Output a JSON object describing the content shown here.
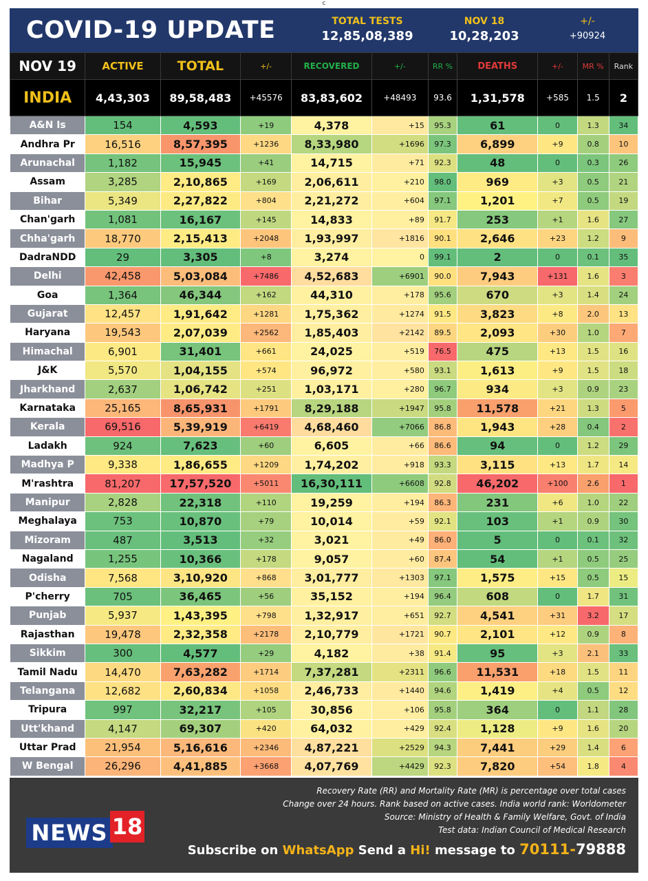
{
  "corner_mark": "c",
  "header": {
    "title": "COVID-19 UPDATE",
    "total_tests_label": "TOTAL TESTS",
    "total_tests_value": "12,85,08,389",
    "nov18_label": "NOV 18",
    "nov18_value": "10,28,203",
    "diff_label": "+/-",
    "diff_value": "+90924"
  },
  "columns": {
    "date": "NOV 19",
    "active": "ACTIVE",
    "total": "TOTAL",
    "total_change": "+/-",
    "recovered": "RECOVERED",
    "recovered_change": "+/-",
    "rr": "RR %",
    "deaths": "DEATHS",
    "deaths_change": "+/-",
    "mr": "MR %",
    "rank": "Rank"
  },
  "india": {
    "name": "INDIA",
    "active": "4,43,303",
    "total": "89,58,483",
    "total_change": "+45576",
    "recovered": "83,83,602",
    "recovered_change": "+48493",
    "rr": "93.6",
    "deaths": "1,31,578",
    "deaths_change": "+585",
    "mr": "1.5",
    "rank": "2"
  },
  "states": [
    {
      "name": "A&N Is",
      "active": "154",
      "total": "4,593",
      "total_change": "+19",
      "recovered": "4,378",
      "recovered_change": "+15",
      "rr": "95.3",
      "deaths": "61",
      "deaths_change": "0",
      "mr": "1.3",
      "rank": "34",
      "c": [
        "#63be7b",
        "#63be7b",
        "#8fcb7d",
        "#fff2a0",
        "#ffe9a0",
        "#a9d27f",
        "#63be7b",
        "#63be7b",
        "#c3d980",
        "#63be7b"
      ]
    },
    {
      "name": "Andhra Pr",
      "active": "16,516",
      "total": "8,57,395",
      "total_change": "+1236",
      "recovered": "8,33,980",
      "recovered_change": "+1696",
      "rr": "97.3",
      "deaths": "6,899",
      "deaths_change": "+9",
      "mr": "0.8",
      "rank": "10",
      "c": [
        "#fdd17f",
        "#f8956b",
        "#fed882",
        "#b6d67f",
        "#d1dd80",
        "#7cc57c",
        "#fdd17f",
        "#fee783",
        "#a4d07e",
        "#fdc57c"
      ]
    },
    {
      "name": "Arunachal",
      "active": "1,182",
      "total": "15,945",
      "total_change": "+41",
      "recovered": "14,715",
      "recovered_change": "+71",
      "rr": "92.3",
      "deaths": "48",
      "deaths_change": "0",
      "mr": "0.3",
      "rank": "26",
      "c": [
        "#75c37c",
        "#6cc17c",
        "#9acd7e",
        "#fff2a0",
        "#ffeba0",
        "#dce081",
        "#63be7b",
        "#63be7b",
        "#7cc57c",
        "#8fcb7d"
      ]
    },
    {
      "name": "Assam",
      "active": "3,285",
      "total": "2,10,865",
      "total_change": "+169",
      "recovered": "2,06,611",
      "recovered_change": "+210",
      "rr": "98.0",
      "deaths": "969",
      "deaths_change": "+3",
      "mr": "0.5",
      "rank": "21",
      "c": [
        "#b0d47f",
        "#ffeb84",
        "#c4d980",
        "#ffeea0",
        "#fff1a0",
        "#63be7b",
        "#ffeb84",
        "#e2e383",
        "#8fcb7d",
        "#b0d47f"
      ]
    },
    {
      "name": "Bihar",
      "active": "5,349",
      "total": "2,27,822",
      "total_change": "+804",
      "recovered": "2,21,272",
      "recovered_change": "+604",
      "rr": "97.1",
      "deaths": "1,201",
      "deaths_change": "+7",
      "mr": "0.5",
      "rank": "19",
      "c": [
        "#ebe582",
        "#feea83",
        "#ffe08a",
        "#ffeea0",
        "#ffeea0",
        "#86c87d",
        "#fff283",
        "#f2e883",
        "#8fcb7d",
        "#c3d980"
      ]
    },
    {
      "name": "Chan'garh",
      "active": "1,081",
      "total": "16,167",
      "total_change": "+145",
      "recovered": "14,833",
      "recovered_change": "+89",
      "rr": "91.7",
      "deaths": "253",
      "deaths_change": "+1",
      "mr": "1.6",
      "rank": "27",
      "c": [
        "#72c27c",
        "#6cc17c",
        "#bfd880",
        "#fff2a0",
        "#fff0a0",
        "#f5e884",
        "#86c87d",
        "#b6d57f",
        "#e6e383",
        "#86c87d"
      ]
    },
    {
      "name": "Chha'garh",
      "active": "18,770",
      "total": "2,15,413",
      "total_change": "+2048",
      "recovered": "1,93,997",
      "recovered_change": "+1816",
      "rr": "90.1",
      "deaths": "2,646",
      "deaths_change": "+23",
      "mr": "1.2",
      "rank": "9",
      "c": [
        "#fdca7d",
        "#feeb84",
        "#fdc57c",
        "#ffeea0",
        "#ffe59f",
        "#ffe07f",
        "#fee182",
        "#fdd47f",
        "#ccdc80",
        "#fdbd7a"
      ]
    },
    {
      "name": "DadraNDD",
      "active": "29",
      "total": "3,305",
      "total_change": "+8",
      "recovered": "3,274",
      "recovered_change": "0",
      "rr": "99.1",
      "deaths": "2",
      "deaths_change": "0",
      "mr": "0.1",
      "rank": "35",
      "c": [
        "#63be7b",
        "#63be7b",
        "#7fc77c",
        "#fff2a0",
        "#fff2a0",
        "#63be7b",
        "#63be7b",
        "#63be7b",
        "#6cc17c",
        "#63be7b"
      ]
    },
    {
      "name": "Delhi",
      "active": "42,458",
      "total": "5,03,084",
      "total_change": "+7486",
      "recovered": "4,52,683",
      "recovered_change": "+6901",
      "rr": "90.0",
      "deaths": "7,943",
      "deaths_change": "+131",
      "mr": "1.6",
      "rank": "3",
      "c": [
        "#f9986c",
        "#fcbc7a",
        "#f8696b",
        "#ffdd9e",
        "#9ecf7e",
        "#ffe07f",
        "#fdcc7e",
        "#f8696b",
        "#e6e383",
        "#f97e6f"
      ]
    },
    {
      "name": "Goa",
      "active": "1,364",
      "total": "46,344",
      "total_change": "+162",
      "recovered": "44,310",
      "recovered_change": "+178",
      "rr": "95.6",
      "deaths": "670",
      "deaths_change": "+3",
      "mr": "1.4",
      "rank": "24",
      "c": [
        "#78c47c",
        "#85c77d",
        "#c2d980",
        "#fff1a0",
        "#ffeea0",
        "#a2d07e",
        "#cfdb80",
        "#e2e383",
        "#d9df81",
        "#a2d07e"
      ]
    },
    {
      "name": "Gujarat",
      "active": "12,457",
      "total": "1,91,642",
      "total_change": "+1281",
      "recovered": "1,75,362",
      "recovered_change": "+1274",
      "rr": "91.5",
      "deaths": "3,823",
      "deaths_change": "+8",
      "mr": "2.0",
      "rank": "13",
      "c": [
        "#fee283",
        "#ffeb84",
        "#fed782",
        "#ffefa0",
        "#ffeaa0",
        "#fde883",
        "#fedb82",
        "#fde983",
        "#fcc77c",
        "#fee283"
      ]
    },
    {
      "name": "Haryana",
      "active": "19,543",
      "total": "2,07,039",
      "total_change": "+2562",
      "recovered": "1,85,403",
      "recovered_change": "+2142",
      "rr": "89.5",
      "deaths": "2,093",
      "deaths_change": "+30",
      "mr": "1.0",
      "rank": "7",
      "c": [
        "#fdc87d",
        "#feeb84",
        "#fcb77a",
        "#ffeea0",
        "#ffe39f",
        "#fed680",
        "#ffe583",
        "#fdcd7e",
        "#b6d57f",
        "#fda975"
      ]
    },
    {
      "name": "Himachal",
      "active": "6,901",
      "total": "31,401",
      "total_change": "+661",
      "recovered": "24,025",
      "recovered_change": "+519",
      "rr": "76.5",
      "deaths": "475",
      "deaths_change": "+13",
      "mr": "1.5",
      "rank": "16",
      "c": [
        "#fce983",
        "#78c47c",
        "#ffe583",
        "#fff2a0",
        "#ffeea0",
        "#f8696b",
        "#b8d67f",
        "#fde884",
        "#e1e283",
        "#dfe282"
      ]
    },
    {
      "name": "J&K",
      "active": "5,570",
      "total": "1,04,155",
      "total_change": "+574",
      "recovered": "96,972",
      "recovered_change": "+580",
      "rr": "93.1",
      "deaths": "1,613",
      "deaths_change": "+9",
      "mr": "1.5",
      "rank": "18",
      "c": [
        "#f1e783",
        "#e4e283",
        "#ffe683",
        "#fff0a0",
        "#ffeea0",
        "#c9da80",
        "#fdee84",
        "#fee783",
        "#e1e283",
        "#ccdc80"
      ]
    },
    {
      "name": "Jharkhand",
      "active": "2,637",
      "total": "1,06,742",
      "total_change": "+251",
      "recovered": "1,03,171",
      "recovered_change": "+280",
      "rr": "96.7",
      "deaths": "934",
      "deaths_change": "+3",
      "mr": "0.9",
      "rank": "23",
      "c": [
        "#a2d07e",
        "#e6e383",
        "#dde081",
        "#fff0a0",
        "#fff0a0",
        "#8fcb7d",
        "#fcea84",
        "#e2e383",
        "#aed37f",
        "#a8d27f"
      ]
    },
    {
      "name": "Karnataka",
      "active": "25,165",
      "total": "8,65,931",
      "total_change": "+1791",
      "recovered": "8,29,188",
      "recovered_change": "+1947",
      "rr": "95.8",
      "deaths": "11,578",
      "deaths_change": "+21",
      "mr": "1.3",
      "rank": "5",
      "c": [
        "#fcb779",
        "#f8946b",
        "#fdca7d",
        "#b8d67f",
        "#c9da80",
        "#a4d07e",
        "#f9a06d",
        "#fdd67f",
        "#cfdb80",
        "#fa9a6d"
      ]
    },
    {
      "name": "Kerala",
      "active": "69,516",
      "total": "5,39,919",
      "total_change": "+6419",
      "recovered": "4,68,460",
      "recovered_change": "+7066",
      "rr": "86.8",
      "deaths": "1,943",
      "deaths_change": "+28",
      "mr": "0.4",
      "rank": "2",
      "c": [
        "#f8696b",
        "#fcb579",
        "#f97b6e",
        "#ffdc9e",
        "#93cc7e",
        "#fdbb7a",
        "#fee582",
        "#fdcf7e",
        "#85c77d",
        "#f8726d"
      ]
    },
    {
      "name": "Ladakh",
      "active": "924",
      "total": "7,623",
      "total_change": "+60",
      "recovered": "6,605",
      "recovered_change": "+66",
      "rr": "86.6",
      "deaths": "94",
      "deaths_change": "0",
      "mr": "1.2",
      "rank": "29",
      "c": [
        "#6ec17c",
        "#66bf7c",
        "#9fce7e",
        "#fff2a0",
        "#ffeca0",
        "#fdba79",
        "#66bf7c",
        "#63be7b",
        "#ccdc80",
        "#7cc57c"
      ]
    },
    {
      "name": "Madhya P",
      "active": "9,338",
      "total": "1,86,655",
      "total_change": "+1209",
      "recovered": "1,74,202",
      "recovered_change": "+918",
      "rr": "93.3",
      "deaths": "3,115",
      "deaths_change": "+13",
      "mr": "1.7",
      "rank": "14",
      "c": [
        "#fee983",
        "#ffeb84",
        "#fed882",
        "#ffefa0",
        "#ffeca0",
        "#c5d980",
        "#ffe182",
        "#fde884",
        "#efe683",
        "#f5e984"
      ]
    },
    {
      "name": "M'rashtra",
      "active": "81,207",
      "total": "17,57,520",
      "total_change": "+5011",
      "recovered": "16,30,111",
      "recovered_change": "+6608",
      "rr": "92.8",
      "deaths": "46,202",
      "deaths_change": "+100",
      "mr": "2.6",
      "rank": "1",
      "c": [
        "#f8696b",
        "#f8696b",
        "#fa8870",
        "#63be7b",
        "#8fcb7d",
        "#d1dc81",
        "#f8696b",
        "#f97f6f",
        "#f9a06d",
        "#f8696b"
      ]
    },
    {
      "name": "Manipur",
      "active": "2,828",
      "total": "22,318",
      "total_change": "+110",
      "recovered": "19,259",
      "recovered_change": "+194",
      "rr": "86.3",
      "deaths": "231",
      "deaths_change": "+6",
      "mr": "1.0",
      "rank": "22",
      "c": [
        "#a8d27f",
        "#70c27c",
        "#b1d47f",
        "#fff2a0",
        "#ffeea0",
        "#fdb579",
        "#83c77d",
        "#f0e783",
        "#b6d57f",
        "#9fce7e"
      ]
    },
    {
      "name": "Meghalaya",
      "active": "753",
      "total": "10,870",
      "total_change": "+79",
      "recovered": "10,014",
      "recovered_change": "+59",
      "rr": "92.1",
      "deaths": "103",
      "deaths_change": "+1",
      "mr": "0.9",
      "rank": "30",
      "c": [
        "#6cc17c",
        "#69c07c",
        "#a7d17e",
        "#fff2a0",
        "#ffeca0",
        "#e1e282",
        "#68c07c",
        "#b6d57f",
        "#aed37f",
        "#75c37c"
      ]
    },
    {
      "name": "Mizoram",
      "active": "487",
      "total": "3,513",
      "total_change": "+32",
      "recovered": "3,021",
      "recovered_change": "+49",
      "rr": "86.0",
      "deaths": "5",
      "deaths_change": "0",
      "mr": "0.1",
      "rank": "32",
      "c": [
        "#69c07c",
        "#63be7b",
        "#97cd7e",
        "#fff2a0",
        "#ffeba0",
        "#fdb078",
        "#63be7b",
        "#63be7b",
        "#6cc17c",
        "#6ec17c"
      ]
    },
    {
      "name": "Nagaland",
      "active": "1,255",
      "total": "10,366",
      "total_change": "+178",
      "recovered": "9,057",
      "recovered_change": "+60",
      "rr": "87.4",
      "deaths": "54",
      "deaths_change": "+1",
      "mr": "0.5",
      "rank": "25",
      "c": [
        "#77c47c",
        "#69c07c",
        "#c4d980",
        "#fff2a0",
        "#ffeca0",
        "#fdc57d",
        "#63be7b",
        "#b6d57f",
        "#8fcb7d",
        "#96cc7e"
      ]
    },
    {
      "name": "Odisha",
      "active": "7,568",
      "total": "3,10,920",
      "total_change": "+868",
      "recovered": "3,01,777",
      "recovered_change": "+1303",
      "rr": "97.1",
      "deaths": "1,575",
      "deaths_change": "+15",
      "mr": "0.5",
      "rank": "15",
      "c": [
        "#ffe683",
        "#fee583",
        "#ffdf8b",
        "#ffeda0",
        "#ffe9a0",
        "#86c87d",
        "#feed84",
        "#fee783",
        "#8fcb7d",
        "#ecec83"
      ]
    },
    {
      "name": "P'cherry",
      "active": "705",
      "total": "36,465",
      "total_change": "+56",
      "recovered": "35,152",
      "recovered_change": "+194",
      "rr": "96.4",
      "deaths": "608",
      "deaths_change": "0",
      "mr": "1.7",
      "rank": "31",
      "c": [
        "#6bc07c",
        "#7cc57c",
        "#9fce7e",
        "#fff1a0",
        "#ffeea0",
        "#93cc7e",
        "#c2d980",
        "#63be7b",
        "#efe683",
        "#71c27c"
      ]
    },
    {
      "name": "Punjab",
      "active": "5,937",
      "total": "1,43,395",
      "total_change": "+798",
      "recovered": "1,32,917",
      "recovered_change": "+651",
      "rr": "92.7",
      "deaths": "4,541",
      "deaths_change": "+31",
      "mr": "3.2",
      "rank": "17",
      "c": [
        "#f6e983",
        "#fff083",
        "#ffe08a",
        "#ffefa0",
        "#ffeda0",
        "#d3dd81",
        "#fed180",
        "#fdcc7e",
        "#f8696b",
        "#d5de81"
      ]
    },
    {
      "name": "Rajasthan",
      "active": "19,478",
      "total": "2,32,358",
      "total_change": "+2178",
      "recovered": "2,10,779",
      "recovered_change": "+1721",
      "rr": "90.7",
      "deaths": "2,101",
      "deaths_change": "+12",
      "mr": "0.9",
      "rank": "8",
      "c": [
        "#fdc87d",
        "#ffea84",
        "#fdbe7a",
        "#ffeea0",
        "#ffe69f",
        "#fce983",
        "#ffe583",
        "#fde884",
        "#aed37f",
        "#fdb278"
      ]
    },
    {
      "name": "Sikkim",
      "active": "300",
      "total": "4,577",
      "total_change": "+29",
      "recovered": "4,182",
      "recovered_change": "+38",
      "rr": "91.4",
      "deaths": "95",
      "deaths_change": "+3",
      "mr": "2.1",
      "rank": "33",
      "c": [
        "#66bf7c",
        "#63be7b",
        "#95cc7e",
        "#fff2a0",
        "#ffeba0",
        "#f6e984",
        "#66bf7c",
        "#e2e383",
        "#fbc17b",
        "#6ac07c"
      ]
    },
    {
      "name": "Tamil Nadu",
      "active": "14,470",
      "total": "7,63,282",
      "total_change": "+1714",
      "recovered": "7,37,281",
      "recovered_change": "+2311",
      "rr": "96.6",
      "deaths": "11,531",
      "deaths_change": "+18",
      "mr": "1.5",
      "rank": "11",
      "c": [
        "#fdd981",
        "#f9a26e",
        "#fdcc7e",
        "#c4d980",
        "#e4e283",
        "#90cb7d",
        "#f9a06d",
        "#fdd980",
        "#e1e283",
        "#fdd580"
      ]
    },
    {
      "name": "Telangana",
      "active": "12,682",
      "total": "2,60,834",
      "total_change": "+1058",
      "recovered": "2,46,733",
      "recovered_change": "+1440",
      "rr": "94.6",
      "deaths": "1,419",
      "deaths_change": "+4",
      "mr": "0.5",
      "rank": "12",
      "c": [
        "#fee183",
        "#fee884",
        "#fedc82",
        "#ffeda0",
        "#ffeaa0",
        "#b1d47f",
        "#fdef84",
        "#e6e383",
        "#8fcb7d",
        "#fedc82"
      ]
    },
    {
      "name": "Tripura",
      "active": "997",
      "total": "32,217",
      "total_change": "+105",
      "recovered": "30,856",
      "recovered_change": "+106",
      "rr": "95.8",
      "deaths": "364",
      "deaths_change": "0",
      "mr": "1.1",
      "rank": "28",
      "c": [
        "#70c27c",
        "#79c47c",
        "#afd37f",
        "#fff1a0",
        "#ffeda0",
        "#a4d07e",
        "#9ecf7e",
        "#63be7b",
        "#c1d880",
        "#82c67d"
      ]
    },
    {
      "name": "Utt'khand",
      "active": "4,147",
      "total": "69,307",
      "total_change": "+420",
      "recovered": "64,032",
      "recovered_change": "+429",
      "rr": "92.4",
      "deaths": "1,128",
      "deaths_change": "+9",
      "mr": "1.6",
      "rank": "20",
      "c": [
        "#c4d980",
        "#a4d07e",
        "#fae283",
        "#fff1a0",
        "#ffeea0",
        "#d9df81",
        "#ecec83",
        "#fee783",
        "#e6e383",
        "#b6d57f"
      ]
    },
    {
      "name": "Uttar Prad",
      "active": "21,954",
      "total": "5,16,616",
      "total_change": "+2346",
      "recovered": "4,87,221",
      "recovered_change": "+2529",
      "rr": "94.3",
      "deaths": "7,441",
      "deaths_change": "+29",
      "mr": "1.4",
      "rank": "6",
      "c": [
        "#fdc07b",
        "#fcb77a",
        "#fdbb7a",
        "#ffdf9e",
        "#dde081",
        "#b8d67f",
        "#fdcd7e",
        "#fdcd7e",
        "#d9df81",
        "#fca275"
      ]
    },
    {
      "name": "W Bengal",
      "active": "26,296",
      "total": "4,41,885",
      "total_change": "+3668",
      "recovered": "4,07,769",
      "recovered_change": "+4429",
      "rr": "92.3",
      "deaths": "7,820",
      "deaths_change": "+54",
      "mr": "1.8",
      "rank": "4",
      "c": [
        "#fcb479",
        "#fdc07c",
        "#fba172",
        "#ffe29f",
        "#bcd77f",
        "#dce081",
        "#fdcc7e",
        "#fdbf7b",
        "#f5e984",
        "#f98970"
      ]
    }
  ],
  "footer": {
    "note1": "Recovery Rate (RR) and Mortality Rate (MR) is percentage over total cases",
    "note2": "Change over 24 hours. Rank based on active cases. India world rank: Worldometer",
    "note3": "Source: Ministry of Health & Family Welfare, Govt. of India",
    "note4": "Test data: Indian Council of Medical Research",
    "logo_text": "NEWS",
    "logo_number": "18",
    "sub_1": "Subscribe on ",
    "sub_whatsapp": "WhatsApp",
    "sub_2": " Send a ",
    "sub_hi": "Hi!",
    "sub_3": " message to ",
    "sub_phone_a": "70111-",
    "sub_phone_b": "79888"
  }
}
